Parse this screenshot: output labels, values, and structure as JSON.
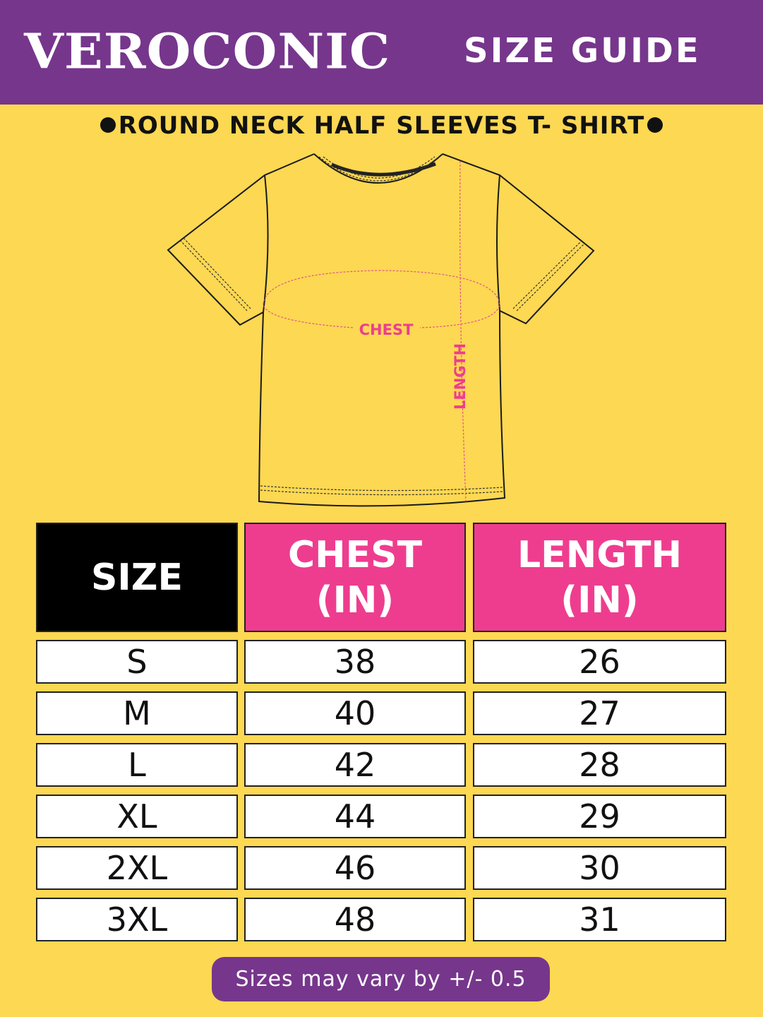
{
  "header": {
    "brand": "VEROCONIC",
    "title": "SIZE GUIDE"
  },
  "subtitle": "ROUND NECK HALF SLEEVES T- SHIRT",
  "diagram": {
    "chest_label": "CHEST",
    "length_label": "LENGTH"
  },
  "table": {
    "headers": [
      "SIZE",
      "CHEST (IN)",
      "LENGTH (IN)"
    ],
    "rows": [
      [
        "S",
        "38",
        "26"
      ],
      [
        "M",
        "40",
        "27"
      ],
      [
        "L",
        "42",
        "28"
      ],
      [
        "XL",
        "44",
        "29"
      ],
      [
        "2XL",
        "46",
        "30"
      ],
      [
        "3XL",
        "48",
        "31"
      ]
    ]
  },
  "footer_note": "Sizes may vary by +/- 0.5",
  "colors": {
    "purple": "#76368c",
    "yellow": "#fdd852",
    "pink": "#ee3d8f",
    "black": "#000000"
  }
}
